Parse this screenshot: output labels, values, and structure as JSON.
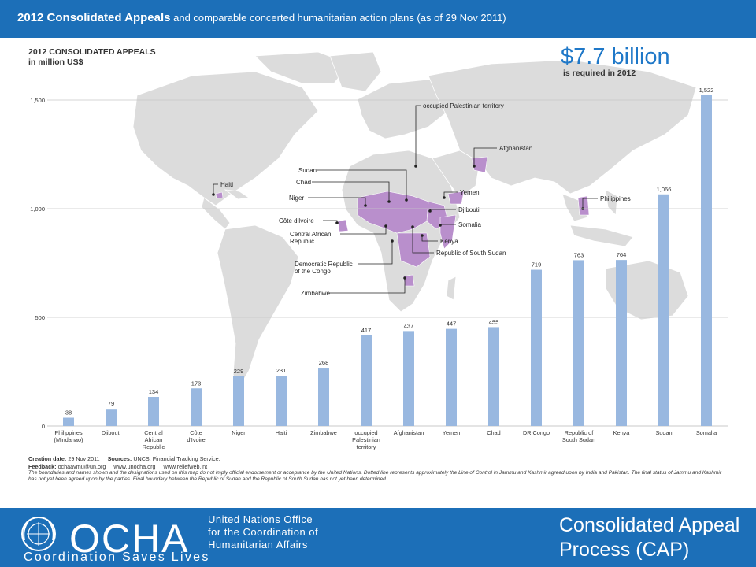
{
  "header": {
    "title_bold": "2012 Consolidated Appeals",
    "title_rest": " and comparable concerted humanitarian action plans (as of 29 Nov 2011)"
  },
  "chart_data": {
    "type": "bar",
    "title": "2012 CONSOLIDATED APPEALS",
    "subtitle": "in million US$",
    "headline_amount": "$7.7 billion",
    "headline_note": "is required in 2012",
    "categories": [
      [
        "Philippines",
        "(Mindanao)"
      ],
      [
        "Djibouti"
      ],
      [
        "Central",
        "African",
        "Republic"
      ],
      [
        "Côte",
        "d'Ivoire"
      ],
      [
        "Niger"
      ],
      [
        "Haiti"
      ],
      [
        "Zimbabwe"
      ],
      [
        "occupied",
        "Palestinian",
        "territory"
      ],
      [
        "Afghanistan"
      ],
      [
        "Yemen"
      ],
      [
        "Chad"
      ],
      [
        "DR Congo"
      ],
      [
        "Republic of",
        "South Sudan"
      ],
      [
        "Kenya"
      ],
      [
        "Sudan"
      ],
      [
        "Somalia"
      ]
    ],
    "values": [
      38,
      79,
      134,
      173,
      229,
      231,
      268,
      417,
      437,
      447,
      455,
      719,
      763,
      764,
      1066,
      1522
    ],
    "value_labels": [
      "38",
      "79",
      "134",
      "173",
      "229",
      "231",
      "268",
      "417",
      "437",
      "447",
      "455",
      "719",
      "763",
      "764",
      "1,066",
      "1,522"
    ],
    "yticks": [
      0,
      500,
      1000,
      1500
    ],
    "ytick_labels": [
      "0",
      "500",
      "1,000",
      "1,500"
    ],
    "ylim": [
      0,
      1522
    ],
    "bar_color": "#99b8e0",
    "map_labels": [
      [
        "occupied Palestinian territory"
      ],
      [
        "Afghanistan"
      ],
      [
        "Sudan"
      ],
      [
        "Chad"
      ],
      [
        "Haiti"
      ],
      [
        "Niger"
      ],
      [
        "Yemen"
      ],
      [
        "Philippines"
      ],
      [
        "Djibouti"
      ],
      [
        "Côte d'Ivoire"
      ],
      [
        "Somalia"
      ],
      [
        "Central African",
        "Republic"
      ],
      [
        "Kenya"
      ],
      [
        "Republic of South Sudan"
      ],
      [
        "Democratic Republic",
        "of the Congo"
      ],
      [
        "Zimbabwe"
      ]
    ]
  },
  "footer": {
    "creation_label": "Creation date:",
    "creation_value": "29 Nov 2011",
    "sources_label": "Sources:",
    "sources_value": "UNCS, Financial Tracking Service.",
    "feedback_label": "Feedback:",
    "feedback_value": "ochaavmu@un.org",
    "link1": "www.unocha.org",
    "link2": "www.reliefweb.int",
    "disclaimer": "The boundaries and names shown and the designations used on this map do not imply official endorsement or acceptance by the United Nations. Dotted line represents approximately the Line of Control in Jammu and Kashmir agreed upon by India and Pakistan. The final status of Jammu and Kashmir has not yet been agreed upon by the parties. Final boundary between the Republic of Sudan and the Republic of South Sudan has not yet been determined."
  },
  "branding": {
    "ocha": "OCHA",
    "ocha_line1": "United Nations Office",
    "ocha_line2": "for the Coordination of",
    "ocha_line3": "Humanitarian Affairs",
    "tagline": "Coordination Saves Lives",
    "cap_line1": "Consolidated Appeal",
    "cap_line2": "Process (CAP)"
  }
}
